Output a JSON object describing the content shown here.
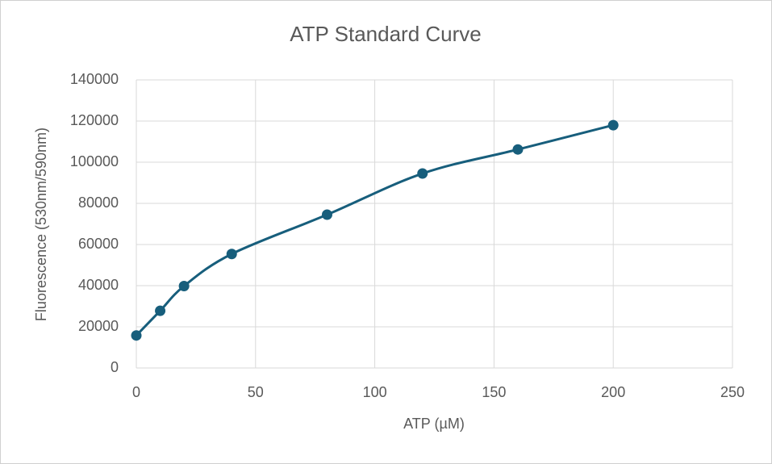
{
  "chart_data": {
    "type": "scatter",
    "title": "ATP Standard Curve",
    "x_label": "ATP (µM)",
    "y_label": "Fluorescence (530nm/590nm)",
    "x": [
      0,
      10,
      20,
      40,
      80,
      120,
      160,
      200
    ],
    "values": [
      15800,
      27800,
      39800,
      55400,
      74500,
      94500,
      106200,
      118000
    ],
    "color": "#175e7c",
    "smooth": true,
    "markers": true,
    "xlim": [
      0,
      250
    ],
    "xticks": [
      0,
      50,
      100,
      150,
      200,
      250
    ],
    "ylim": [
      0,
      140000
    ],
    "yticks": [
      0,
      20000,
      40000,
      60000,
      80000,
      100000,
      120000,
      140000
    ],
    "grid": true
  }
}
